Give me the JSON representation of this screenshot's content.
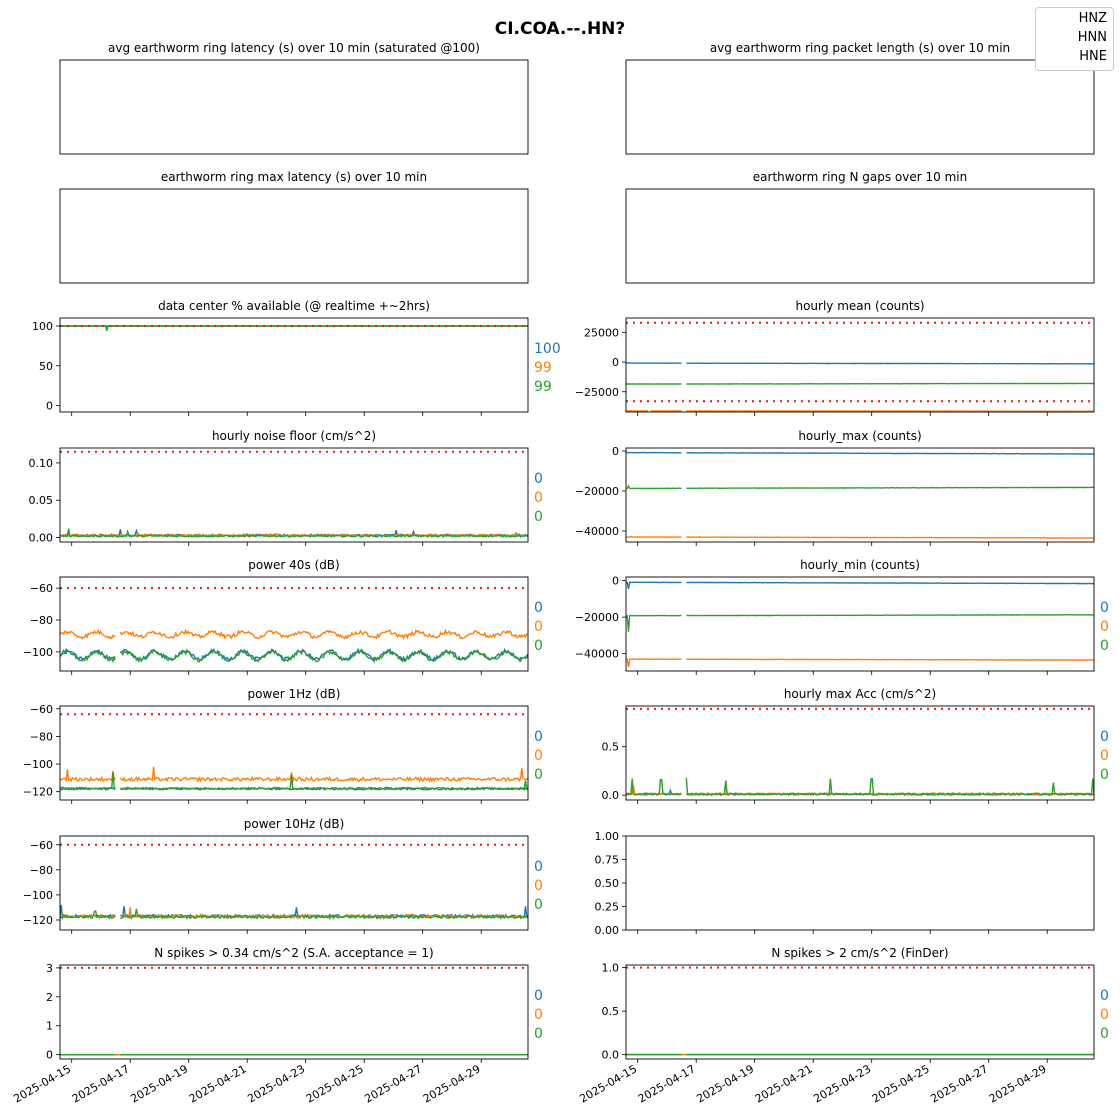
{
  "figure": {
    "title": "CI.COA.--.HN?"
  },
  "legend": [
    "HNZ",
    "HNN",
    "HNE"
  ],
  "colors": {
    "HNZ": "#1f77b4",
    "HNN": "#ff7f0e",
    "HNE": "#2ca02c",
    "threshold": "#e41a1c"
  },
  "chart_data": [
    {
      "id": "avg_latency",
      "type": "line",
      "title": "avg earthworm ring latency (s)   over 10 min (saturated @100)",
      "empty": true,
      "series": []
    },
    {
      "id": "avg_packet_length",
      "type": "line",
      "title": "avg earthworm ring packet length (s)   over 10 min",
      "empty": true,
      "series": []
    },
    {
      "id": "max_latency",
      "type": "line",
      "title": "earthworm ring max latency (s)   over 10 min",
      "empty": true,
      "series": []
    },
    {
      "id": "n_gaps",
      "type": "line",
      "title": "earthworm ring N gaps   over 10 min",
      "empty": true,
      "series": []
    },
    {
      "id": "availability",
      "type": "line",
      "title": "data center % available (@ realtime +~2hrs)",
      "ylim": [
        -8,
        110
      ],
      "yticks": [
        {
          "v": 0,
          "t": "0"
        },
        {
          "v": 50,
          "t": "50"
        },
        {
          "v": 100,
          "t": "100"
        }
      ],
      "thresholds": [
        100
      ],
      "end_labels": [
        "100",
        "99",
        "99"
      ],
      "series": [
        {
          "name": "HNZ",
          "base": 100,
          "noise": 0,
          "gaps": [],
          "spikes": []
        },
        {
          "name": "HNN",
          "base": 100,
          "noise": 0,
          "gaps": [],
          "spikes": [
            {
              "x": 1.6,
              "v": 94
            }
          ]
        },
        {
          "name": "HNE",
          "base": 100,
          "noise": 0,
          "gaps": [],
          "spikes": [
            {
              "x": 1.6,
              "v": 94
            }
          ]
        }
      ]
    },
    {
      "id": "hourly_mean",
      "type": "line",
      "title": "hourly mean (counts)",
      "ylim": [
        -42000,
        37000
      ],
      "yticks": [
        {
          "v": -25000,
          "t": "−25000"
        },
        {
          "v": 0,
          "t": "0"
        },
        {
          "v": 25000,
          "t": "25000"
        }
      ],
      "thresholds": [
        33000,
        -33000
      ],
      "end_labels": [],
      "series": [
        {
          "name": "HNZ",
          "base": -900,
          "drift": -600,
          "noise": 60,
          "gaps": [
            [
              1.9,
              2.05
            ]
          ],
          "spikes": []
        },
        {
          "name": "HNN",
          "base": -41000,
          "drift": -400,
          "noise": 60,
          "gaps": [
            [
              0.8,
              0.82
            ],
            [
              1.9,
              2.05
            ]
          ],
          "spikes": []
        },
        {
          "name": "HNE",
          "base": -18500,
          "drift": 500,
          "noise": 60,
          "gaps": [
            [
              1.9,
              2.05
            ]
          ],
          "spikes": []
        }
      ]
    },
    {
      "id": "noise_floor",
      "type": "line",
      "title": "hourly noise floor (cm/s^2)",
      "ylim": [
        -0.006,
        0.12
      ],
      "yticks": [
        {
          "v": 0,
          "t": "0.00"
        },
        {
          "v": 0.05,
          "t": "0.05"
        },
        {
          "v": 0.1,
          "t": "0.10"
        }
      ],
      "thresholds": [
        0.115
      ],
      "end_labels": [
        "0",
        "0",
        "0"
      ],
      "series": [
        {
          "name": "HNZ",
          "base": 0.003,
          "noise": 0.0015,
          "gaps": [],
          "spikes": [
            {
              "x": 2.05,
              "v": 0.011
            },
            {
              "x": 2.6,
              "v": 0.009
            },
            {
              "x": 11.5,
              "v": 0.01
            },
            {
              "x": 12.1,
              "v": 0.008
            }
          ]
        },
        {
          "name": "HNN",
          "base": 0.003,
          "noise": 0.0012,
          "gaps": [],
          "spikes": [
            {
              "x": 15.6,
              "v": 0.006
            }
          ]
        },
        {
          "name": "HNE",
          "base": 0.002,
          "noise": 0.0012,
          "gaps": [],
          "spikes": [
            {
              "x": 0.3,
              "v": 0.012
            },
            {
              "x": 2.3,
              "v": 0.008
            }
          ]
        }
      ]
    },
    {
      "id": "hourly_max",
      "type": "line",
      "title": "hourly_max (counts)",
      "ylim": [
        -45500,
        1500
      ],
      "yticks": [
        {
          "v": -40000,
          "t": "−40000"
        },
        {
          "v": -20000,
          "t": "−20000"
        },
        {
          "v": 0,
          "t": "0"
        }
      ],
      "thresholds": [],
      "end_labels": [],
      "series": [
        {
          "name": "HNZ",
          "base": -800,
          "drift": -700,
          "noise": 80,
          "gaps": [
            [
              1.9,
              2.05
            ]
          ],
          "spikes": []
        },
        {
          "name": "HNN",
          "base": -43000,
          "drift": -500,
          "noise": 60,
          "gaps": [
            [
              1.9,
              2.05
            ]
          ],
          "spikes": []
        },
        {
          "name": "HNE",
          "base": -18700,
          "drift": 500,
          "noise": 60,
          "gaps": [
            [
              1.9,
              2.05
            ]
          ],
          "spikes": [
            {
              "x": 0.1,
              "v": -17500
            }
          ]
        }
      ]
    },
    {
      "id": "power_40s",
      "type": "line",
      "title": "power 40s (dB)",
      "ylim": [
        -112,
        -53
      ],
      "yticks": [
        {
          "v": -100,
          "t": "−100"
        },
        {
          "v": -80,
          "t": "−80"
        },
        {
          "v": -60,
          "t": "−60"
        }
      ],
      "thresholds": [
        -60
      ],
      "end_labels": [
        "0",
        "0",
        "0"
      ],
      "series": [
        {
          "name": "HNZ",
          "base": -102,
          "noise": 1.2,
          "wave": 2.5,
          "gaps": [
            [
              1.9,
              2.05
            ]
          ],
          "spikes": []
        },
        {
          "name": "HNN",
          "base": -89,
          "noise": 1.2,
          "wave": 1.5,
          "gaps": [
            [
              1.9,
              2.05
            ]
          ],
          "spikes": []
        },
        {
          "name": "HNE",
          "base": -102.5,
          "noise": 1.2,
          "wave": 2.5,
          "gaps": [
            [
              1.9,
              2.05
            ]
          ],
          "spikes": []
        }
      ]
    },
    {
      "id": "hourly_min",
      "type": "line",
      "title": "hourly_min (counts)",
      "ylim": [
        -49500,
        2000
      ],
      "yticks": [
        {
          "v": -40000,
          "t": "−40000"
        },
        {
          "v": -20000,
          "t": "−20000"
        },
        {
          "v": 0,
          "t": "0"
        }
      ],
      "thresholds": [],
      "end_labels": [
        "0",
        "0",
        "0"
      ],
      "series": [
        {
          "name": "HNZ",
          "base": -900,
          "drift": -700,
          "noise": 80,
          "gaps": [
            [
              1.9,
              2.05
            ]
          ],
          "spikes": [
            {
              "x": 0.1,
              "v": -4500
            }
          ]
        },
        {
          "name": "HNN",
          "base": -43000,
          "drift": -500,
          "noise": 60,
          "gaps": [
            [
              1.9,
              2.05
            ]
          ],
          "spikes": [
            {
              "x": 0.1,
              "v": -47500
            }
          ]
        },
        {
          "name": "HNE",
          "base": -19200,
          "drift": 500,
          "noise": 60,
          "gaps": [
            [
              1.9,
              2.05
            ]
          ],
          "spikes": [
            {
              "x": 0.1,
              "v": -28000
            }
          ]
        }
      ]
    },
    {
      "id": "power_1hz",
      "type": "line",
      "title": "power 1Hz (dB)",
      "ylim": [
        -126,
        -58
      ],
      "yticks": [
        {
          "v": -120,
          "t": "−120"
        },
        {
          "v": -100,
          "t": "−100"
        },
        {
          "v": -80,
          "t": "−80"
        },
        {
          "v": -60,
          "t": "−60"
        }
      ],
      "thresholds": [
        -64
      ],
      "end_labels": [
        "0",
        "0",
        "0"
      ],
      "series": [
        {
          "name": "HNZ",
          "base": -118,
          "noise": 0.6,
          "gaps": [
            [
              1.9,
              2.05
            ]
          ],
          "spikes": []
        },
        {
          "name": "HNN",
          "base": -111,
          "noise": 1.3,
          "gaps": [
            [
              1.9,
              2.05
            ]
          ],
          "spikes": [
            {
              "x": 0.25,
              "v": -104
            },
            {
              "x": 1.8,
              "v": -105
            },
            {
              "x": 3.2,
              "v": -102
            },
            {
              "x": 7.9,
              "v": -106
            },
            {
              "x": 15.8,
              "v": -103
            }
          ]
        },
        {
          "name": "HNE",
          "base": -117.5,
          "noise": 0.6,
          "gaps": [
            [
              1.9,
              2.05
            ]
          ],
          "spikes": [
            {
              "x": 1.8,
              "v": -106
            },
            {
              "x": 7.9,
              "v": -108
            },
            {
              "x": 15.9,
              "v": -112
            }
          ]
        }
      ]
    },
    {
      "id": "max_acc",
      "type": "line",
      "title": "hourly max Acc (cm/s^2)",
      "ylim": [
        -0.05,
        0.92
      ],
      "yticks": [
        {
          "v": 0,
          "t": "0.0"
        },
        {
          "v": 0.5,
          "t": "0.5"
        }
      ],
      "thresholds": [
        0.89
      ],
      "end_labels": [
        "0",
        "0",
        "0"
      ],
      "series": [
        {
          "name": "HNZ",
          "base": 0.01,
          "noise": 0.008,
          "gaps": [
            [
              1.9,
              2.05
            ]
          ],
          "spikes": [
            {
              "x": 1.5,
              "v": 0.05
            }
          ]
        },
        {
          "name": "HNN",
          "base": 0.012,
          "noise": 0.01,
          "gaps": [
            [
              1.9,
              2.05
            ]
          ],
          "spikes": [
            {
              "x": 0.25,
              "v": 0.1
            },
            {
              "x": 3.4,
              "v": 0.12
            }
          ]
        },
        {
          "name": "HNE",
          "base": 0.01,
          "noise": 0.01,
          "gaps": [
            [
              1.9,
              2.05
            ]
          ],
          "spikes": [
            {
              "x": 0.2,
              "v": 0.17
            },
            {
              "x": 1.2,
              "v": 0.16
            },
            {
              "x": 2.05,
              "v": 0.18
            },
            {
              "x": 3.4,
              "v": 0.15
            },
            {
              "x": 7.0,
              "v": 0.17
            },
            {
              "x": 8.4,
              "v": 0.17
            },
            {
              "x": 14.6,
              "v": 0.13
            },
            {
              "x": 15.95,
              "v": 0.17
            }
          ]
        }
      ]
    },
    {
      "id": "power_10hz",
      "type": "line",
      "title": "power 10Hz (dB)",
      "ylim": [
        -128,
        -53
      ],
      "yticks": [
        {
          "v": -120,
          "t": "−120"
        },
        {
          "v": -100,
          "t": "−100"
        },
        {
          "v": -80,
          "t": "−80"
        },
        {
          "v": -60,
          "t": "−60"
        }
      ],
      "thresholds": [
        -60
      ],
      "end_labels": [
        "0",
        "0",
        "0"
      ],
      "series": [
        {
          "name": "HNZ",
          "base": -117,
          "noise": 1.2,
          "gaps": [
            [
              1.9,
              2.05
            ]
          ],
          "spikes": [
            {
              "x": 0.05,
              "v": -108
            },
            {
              "x": 2.2,
              "v": -109
            },
            {
              "x": 8.1,
              "v": -110
            },
            {
              "x": 15.9,
              "v": -109
            }
          ]
        },
        {
          "name": "HNN",
          "base": -117,
          "noise": 1.2,
          "gaps": [
            [
              1.9,
              2.05
            ]
          ],
          "spikes": [
            {
              "x": 2.4,
              "v": -110
            }
          ]
        },
        {
          "name": "HNE",
          "base": -117.5,
          "noise": 1.2,
          "gaps": [
            [
              1.9,
              2.05
            ]
          ],
          "spikes": [
            {
              "x": 1.2,
              "v": -113
            },
            {
              "x": 2.6,
              "v": -111
            }
          ]
        }
      ]
    },
    {
      "id": "empty_frac",
      "type": "line",
      "title": "",
      "ylim": [
        0,
        1
      ],
      "yticks": [
        {
          "v": 0,
          "t": "0.00"
        },
        {
          "v": 0.25,
          "t": "0.25"
        },
        {
          "v": 0.5,
          "t": "0.50"
        },
        {
          "v": 0.75,
          "t": "0.75"
        },
        {
          "v": 1,
          "t": "1.00"
        }
      ],
      "thresholds": [],
      "end_labels": [],
      "series": []
    },
    {
      "id": "spikes_034",
      "type": "line",
      "title": "N spikes > 0.34 cm/s^2 (S.A. acceptance = 1)",
      "ylim": [
        -0.15,
        3.1
      ],
      "yticks": [
        {
          "v": 0,
          "t": "0"
        },
        {
          "v": 1,
          "t": "1"
        },
        {
          "v": 2,
          "t": "2"
        },
        {
          "v": 3,
          "t": "3"
        }
      ],
      "thresholds": [
        3
      ],
      "end_labels": [
        "0",
        "0",
        "0"
      ],
      "series": [
        {
          "name": "HNZ",
          "base": 0,
          "noise": 0,
          "gaps": [],
          "spikes": []
        },
        {
          "name": "HNN",
          "base": 0,
          "noise": 0,
          "gaps": [],
          "spikes": []
        },
        {
          "name": "HNE",
          "base": 0,
          "noise": 0,
          "gaps": [
            [
              1.9,
              2.05
            ]
          ],
          "spikes": []
        }
      ]
    },
    {
      "id": "spikes_2",
      "type": "line",
      "title": "N spikes > 2 cm/s^2 (FinDer)",
      "ylim": [
        -0.05,
        1.03
      ],
      "yticks": [
        {
          "v": 0,
          "t": "0.0"
        },
        {
          "v": 0.5,
          "t": "0.5"
        },
        {
          "v": 1,
          "t": "1.0"
        }
      ],
      "thresholds": [
        1
      ],
      "end_labels": [
        "0",
        "0",
        "0"
      ],
      "series": [
        {
          "name": "HNZ",
          "base": 0,
          "noise": 0,
          "gaps": [],
          "spikes": []
        },
        {
          "name": "HNN",
          "base": 0,
          "noise": 0,
          "gaps": [],
          "spikes": []
        },
        {
          "name": "HNE",
          "base": 0,
          "noise": 0,
          "gaps": [
            [
              1.9,
              2.05
            ]
          ],
          "spikes": []
        }
      ]
    }
  ],
  "x_axis": {
    "range_days": [
      0,
      16
    ],
    "tick_positions_days": [
      0.4,
      2.4,
      4.4,
      6.4,
      8.4,
      10.4,
      12.4,
      14.4
    ],
    "tick_labels": [
      "2025-04-15",
      "2025-04-17",
      "2025-04-19",
      "2025-04-21",
      "2025-04-23",
      "2025-04-25",
      "2025-04-27",
      "2025-04-29"
    ]
  }
}
